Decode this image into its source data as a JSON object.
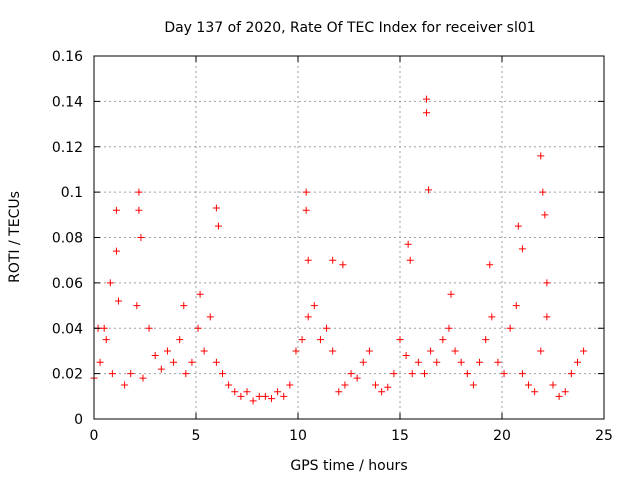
{
  "chart_data": {
    "type": "scatter",
    "title": "Day 137 of 2020, Rate Of TEC Index for receiver sl01",
    "xlabel": "GPS time / hours",
    "ylabel": "ROTI / TECUs",
    "xlim": [
      0,
      25
    ],
    "ylim": [
      0,
      0.16
    ],
    "xticks": [
      0,
      5,
      10,
      15,
      20,
      25
    ],
    "xtick_labels": [
      "0",
      "5",
      "10",
      "15",
      "20",
      "25"
    ],
    "yticks": [
      0,
      0.02,
      0.04,
      0.06,
      0.08,
      0.1,
      0.12,
      0.14,
      0.16
    ],
    "ytick_labels": [
      "0",
      "0.02",
      "0.04",
      "0.06",
      "0.08",
      "0.1",
      "0.12",
      "0.14",
      "0.16"
    ],
    "grid": true,
    "marker": "+",
    "marker_color": "#ff0000",
    "series": [
      {
        "name": "ROTI",
        "x": [
          0.0,
          0.3,
          0.6,
          0.9,
          1.2,
          1.5,
          1.8,
          2.1,
          2.4,
          2.7,
          3.0,
          3.3,
          3.6,
          3.9,
          4.2,
          4.5,
          4.8,
          5.1,
          5.4,
          5.7,
          6.0,
          6.3,
          6.6,
          6.9,
          7.2,
          7.5,
          7.8,
          8.1,
          8.4,
          8.7,
          9.0,
          9.3,
          9.6,
          9.9,
          10.2,
          10.5,
          10.8,
          11.1,
          11.4,
          11.7,
          12.0,
          12.3,
          12.6,
          12.9,
          13.2,
          13.5,
          13.8,
          14.1,
          14.4,
          14.7,
          15.0,
          15.3,
          15.6,
          15.9,
          16.2,
          16.5,
          16.8,
          17.1,
          17.4,
          17.7,
          18.0,
          18.3,
          18.6,
          18.9,
          19.2,
          19.5,
          19.8,
          20.1,
          20.4,
          20.7,
          21.0,
          21.3,
          21.6,
          21.9,
          22.2,
          22.5,
          22.8,
          23.1,
          23.4,
          23.7,
          24.0,
          0.2,
          0.8,
          1.1,
          1.1,
          2.2,
          2.2,
          2.3,
          6.0,
          6.1,
          10.4,
          10.4,
          10.5,
          15.4,
          15.5,
          16.3,
          16.3,
          16.4,
          20.8,
          21.0,
          21.9,
          22.0,
          22.1,
          22.2,
          19.4,
          11.7,
          4.4,
          5.2,
          0.5,
          12.2,
          17.5
        ],
        "y": [
          0.018,
          0.025,
          0.035,
          0.02,
          0.052,
          0.015,
          0.02,
          0.05,
          0.018,
          0.04,
          0.028,
          0.022,
          0.03,
          0.025,
          0.035,
          0.02,
          0.025,
          0.04,
          0.03,
          0.045,
          0.025,
          0.02,
          0.015,
          0.012,
          0.01,
          0.012,
          0.008,
          0.01,
          0.01,
          0.009,
          0.012,
          0.01,
          0.015,
          0.03,
          0.035,
          0.045,
          0.05,
          0.035,
          0.04,
          0.03,
          0.012,
          0.015,
          0.02,
          0.018,
          0.025,
          0.03,
          0.015,
          0.012,
          0.014,
          0.02,
          0.035,
          0.028,
          0.02,
          0.025,
          0.02,
          0.03,
          0.025,
          0.035,
          0.04,
          0.03,
          0.025,
          0.02,
          0.015,
          0.025,
          0.035,
          0.045,
          0.025,
          0.02,
          0.04,
          0.05,
          0.02,
          0.015,
          0.012,
          0.03,
          0.045,
          0.015,
          0.01,
          0.012,
          0.02,
          0.025,
          0.03,
          0.04,
          0.06,
          0.092,
          0.074,
          0.1,
          0.092,
          0.08,
          0.093,
          0.085,
          0.1,
          0.092,
          0.07,
          0.077,
          0.07,
          0.141,
          0.135,
          0.101,
          0.085,
          0.075,
          0.116,
          0.1,
          0.09,
          0.06,
          0.068,
          0.07,
          0.05,
          0.055,
          0.04,
          0.068,
          0.055
        ]
      }
    ]
  }
}
